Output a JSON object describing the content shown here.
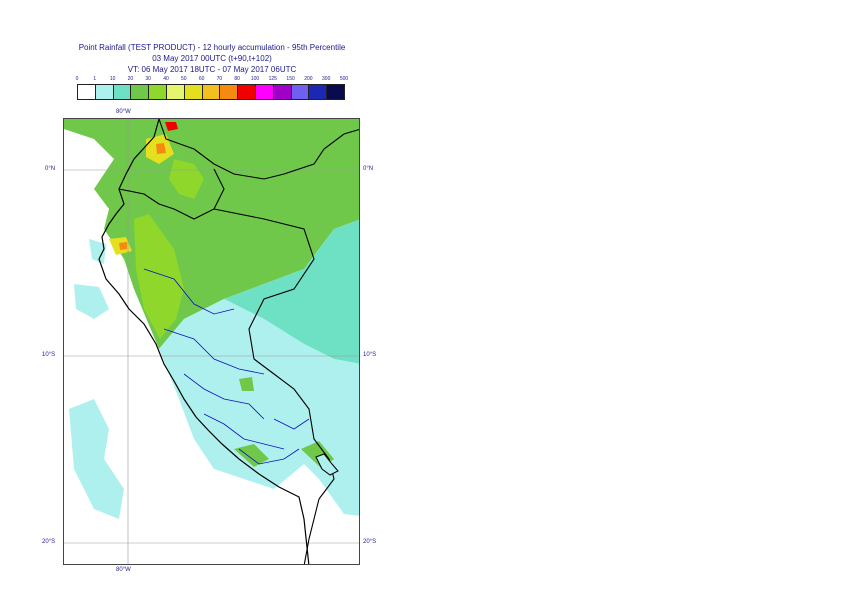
{
  "header": {
    "line1": "Point Rainfall (TEST PRODUCT) - 12 hourly accumulation - 95th Percentile",
    "line2": "03 May 2017 00UTC (t+90,t+102)",
    "line3": "VT: 06 May 2017 18UTC - 07 May 2017 06UTC"
  },
  "legend": {
    "ticks": [
      "0",
      "1",
      "10",
      "20",
      "30",
      "40",
      "50",
      "60",
      "70",
      "80",
      "100",
      "125",
      "150",
      "200",
      "300",
      "500"
    ],
    "colors": [
      "#ffffff",
      "#aef0ee",
      "#6ee0c4",
      "#6fc84a",
      "#8fd72a",
      "#e6f56e",
      "#e4e020",
      "#f4c020",
      "#f58a10",
      "#f00000",
      "#ff00ff",
      "#a000c8",
      "#7060f0",
      "#1c28b4",
      "#0a0a50"
    ]
  },
  "map": {
    "lat_labels": [
      "0°N",
      "10°S",
      "20°S"
    ],
    "lon_labels_top": [
      "80°W"
    ],
    "lon_labels_bottom": [
      "80°W"
    ],
    "colors": {
      "ocean": "#ffffff",
      "light_rain": "#aef0ee",
      "moderate": "#6ee0c4",
      "green": "#6fc84a",
      "lime": "#8fd72a",
      "yellow": "#e4e020",
      "orange": "#f58a10",
      "red": "#f00000",
      "coast": "#000000",
      "border": "#1010c0",
      "grid": "#9a9a9a"
    }
  }
}
